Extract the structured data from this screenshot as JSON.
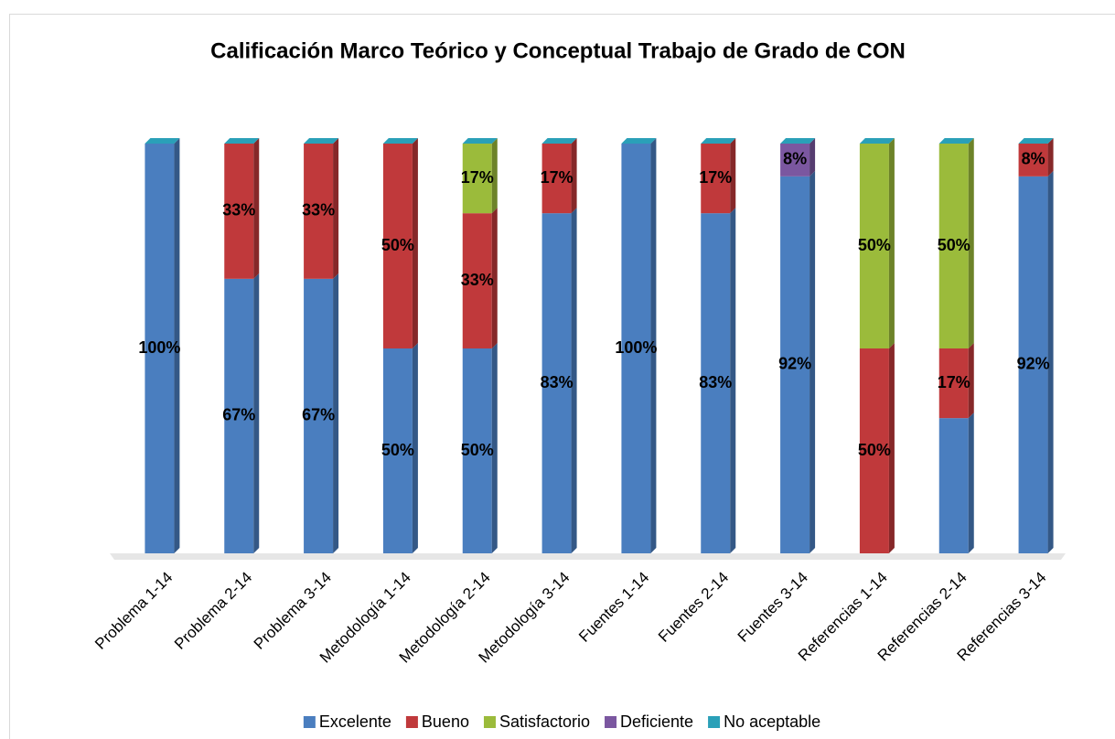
{
  "chart_data": {
    "type": "stacked-bar",
    "title": "Calificación Marco Teórico y Conceptual Trabajo de Grado de CON",
    "categories": [
      "Problema 1-14",
      "Problema 2-14",
      "Problema 3-14",
      "Metodología 1-14",
      "Metodología 2-14",
      "Metodología 3-14",
      "Fuentes 1-14",
      "Fuentes 2-14",
      "Fuentes 3-14",
      "Referencias 1-14",
      "Referencias 2-14",
      "Referencias 3-14"
    ],
    "series": [
      {
        "name": "Excelente",
        "color": "#4a7ebf",
        "values": [
          100,
          67,
          67,
          50,
          50,
          83,
          100,
          83,
          92,
          0,
          33,
          92
        ],
        "value_labels": [
          "100%",
          "67%",
          "67%",
          "50%",
          "50%",
          "83%",
          "100%",
          "83%",
          "92%",
          null,
          null,
          "92%"
        ]
      },
      {
        "name": "Bueno",
        "color": "#c0393b",
        "values": [
          0,
          33,
          33,
          50,
          33,
          17,
          0,
          17,
          0,
          50,
          17,
          8
        ],
        "value_labels": [
          null,
          "33%",
          "33%",
          "50%",
          "33%",
          "17%",
          null,
          "17%",
          null,
          "50%",
          "17%",
          "8%"
        ]
      },
      {
        "name": "Satisfactorio",
        "color": "#9bbb3b",
        "values": [
          0,
          0,
          0,
          0,
          17,
          0,
          0,
          0,
          0,
          50,
          50,
          0
        ],
        "value_labels": [
          null,
          null,
          null,
          null,
          "17%",
          null,
          null,
          null,
          null,
          "50%",
          "50%",
          null
        ]
      },
      {
        "name": "Deficiente",
        "color": "#7b57a0",
        "values": [
          0,
          0,
          0,
          0,
          0,
          0,
          0,
          0,
          8,
          0,
          0,
          0
        ],
        "value_labels": [
          null,
          null,
          null,
          null,
          null,
          null,
          null,
          null,
          "8%",
          null,
          null,
          null
        ]
      },
      {
        "name": "No aceptable",
        "color": "#2aa0b8",
        "values": [
          0,
          0,
          0,
          0,
          0,
          0,
          0,
          0,
          0,
          0,
          0,
          0
        ],
        "value_labels": [
          null,
          null,
          null,
          null,
          null,
          null,
          null,
          null,
          null,
          null,
          null,
          null
        ]
      }
    ],
    "ylim": [
      0,
      100
    ],
    "legend": "bottom"
  }
}
